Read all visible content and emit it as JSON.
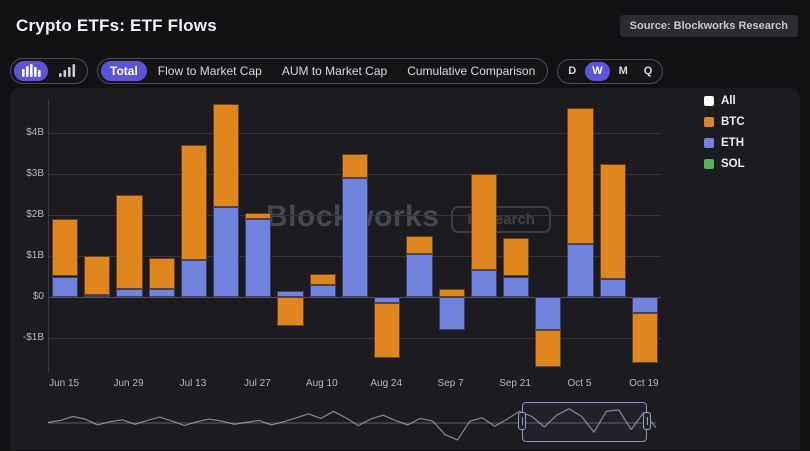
{
  "header": {
    "title": "Crypto ETFs: ETF Flows",
    "source_badge": "Source: Blockworks Research"
  },
  "toolbar": {
    "chart_type_buttons": [
      {
        "icon": "stacked-bar-chart-icon",
        "selected": true
      },
      {
        "icon": "grouped-bar-chart-icon",
        "selected": false
      }
    ],
    "view_tabs": [
      {
        "label": "Total",
        "selected": true
      },
      {
        "label": "Flow to Market Cap",
        "selected": false
      },
      {
        "label": "AUM to Market Cap",
        "selected": false
      },
      {
        "label": "Cumulative Comparison",
        "selected": false
      }
    ],
    "period_tabs": [
      {
        "label": "D",
        "selected": false
      },
      {
        "label": "W",
        "selected": true
      },
      {
        "label": "M",
        "selected": false
      },
      {
        "label": "Q",
        "selected": false
      }
    ]
  },
  "legend": [
    {
      "label": "All",
      "color": "#ffffff"
    },
    {
      "label": "BTC",
      "color": "#e0861f"
    },
    {
      "label": "ETH",
      "color": "#7283dd"
    },
    {
      "label": "SOL",
      "color": "#53b558"
    }
  ],
  "watermark": {
    "text": "Blockworks",
    "badge": "Research"
  },
  "chart_data": {
    "type": "bar",
    "stacked": true,
    "title": "ETF Flows",
    "unit": "USD billions (weekly net flow)",
    "categories": [
      "Jun 15",
      "Jun 22",
      "Jun 29",
      "Jul 6",
      "Jul 13",
      "Jul 20",
      "Jul 27",
      "Aug 3",
      "Aug 10",
      "Aug 17",
      "Aug 24",
      "Aug 31",
      "Sep 7",
      "Sep 14",
      "Sep 21",
      "Sep 28",
      "Oct 5",
      "Oct 12",
      "Oct 19"
    ],
    "series": [
      {
        "name": "ETH",
        "color": "#7283dd",
        "values": [
          0.5,
          0.05,
          0.2,
          0.2,
          0.9,
          2.2,
          1.9,
          0.15,
          0.3,
          2.9,
          -0.15,
          1.05,
          -0.8,
          0.65,
          0.5,
          -0.8,
          1.3,
          0.45,
          -0.4
        ]
      },
      {
        "name": "BTC",
        "color": "#e0861f",
        "values": [
          1.4,
          0.95,
          2.3,
          0.75,
          2.8,
          2.5,
          0.15,
          -0.7,
          0.25,
          0.6,
          -1.35,
          0.45,
          0.2,
          2.35,
          0.95,
          -0.9,
          3.3,
          2.8,
          -1.2
        ]
      },
      {
        "name": "SOL",
        "color": "#53b558",
        "values": [
          0,
          0,
          0,
          0,
          0,
          0,
          0,
          0,
          0,
          0,
          0,
          0,
          0,
          0,
          0,
          0,
          0,
          0,
          0
        ]
      }
    ],
    "y_ticks": [
      {
        "label": "$4B",
        "value": 4
      },
      {
        "label": "$3B",
        "value": 3
      },
      {
        "label": "$2B",
        "value": 2
      },
      {
        "label": "$1B",
        "value": 1
      },
      {
        "label": "$0",
        "value": 0
      },
      {
        "label": "-$1B",
        "value": -1
      }
    ],
    "x_tick_labels": [
      "Jun 15",
      "Jun 29",
      "Jul 13",
      "Jul 27",
      "Aug 10",
      "Aug 24",
      "Sep 7",
      "Sep 21",
      "Oct 5",
      "Oct 19"
    ],
    "ylim": [
      -1.8,
      4.8
    ],
    "grid": true,
    "legend_position": "right"
  },
  "navigator": {
    "selection_start": 0.78,
    "selection_end": 0.985,
    "sparkline": [
      0.05,
      0.2,
      0.5,
      0.3,
      -0.15,
      0.1,
      0.25,
      -0.1,
      0.2,
      0.45,
      0.15,
      -0.2,
      0.1,
      0.3,
      0.15,
      -0.1,
      0.05,
      0.2,
      -0.15,
      0.1,
      0.4,
      0.7,
      0.35,
      0.9,
      0.4,
      -0.2,
      0.3,
      0.6,
      0.2,
      -0.15,
      0.35,
      0.15,
      -0.9,
      -1.3,
      0.15,
      0.4,
      -0.25,
      0.3,
      0.9,
      0.5,
      -0.3,
      0.6,
      1.1,
      0.5,
      -0.7,
      0.9,
      1.0,
      -0.5,
      0.8,
      -0.35
    ]
  }
}
